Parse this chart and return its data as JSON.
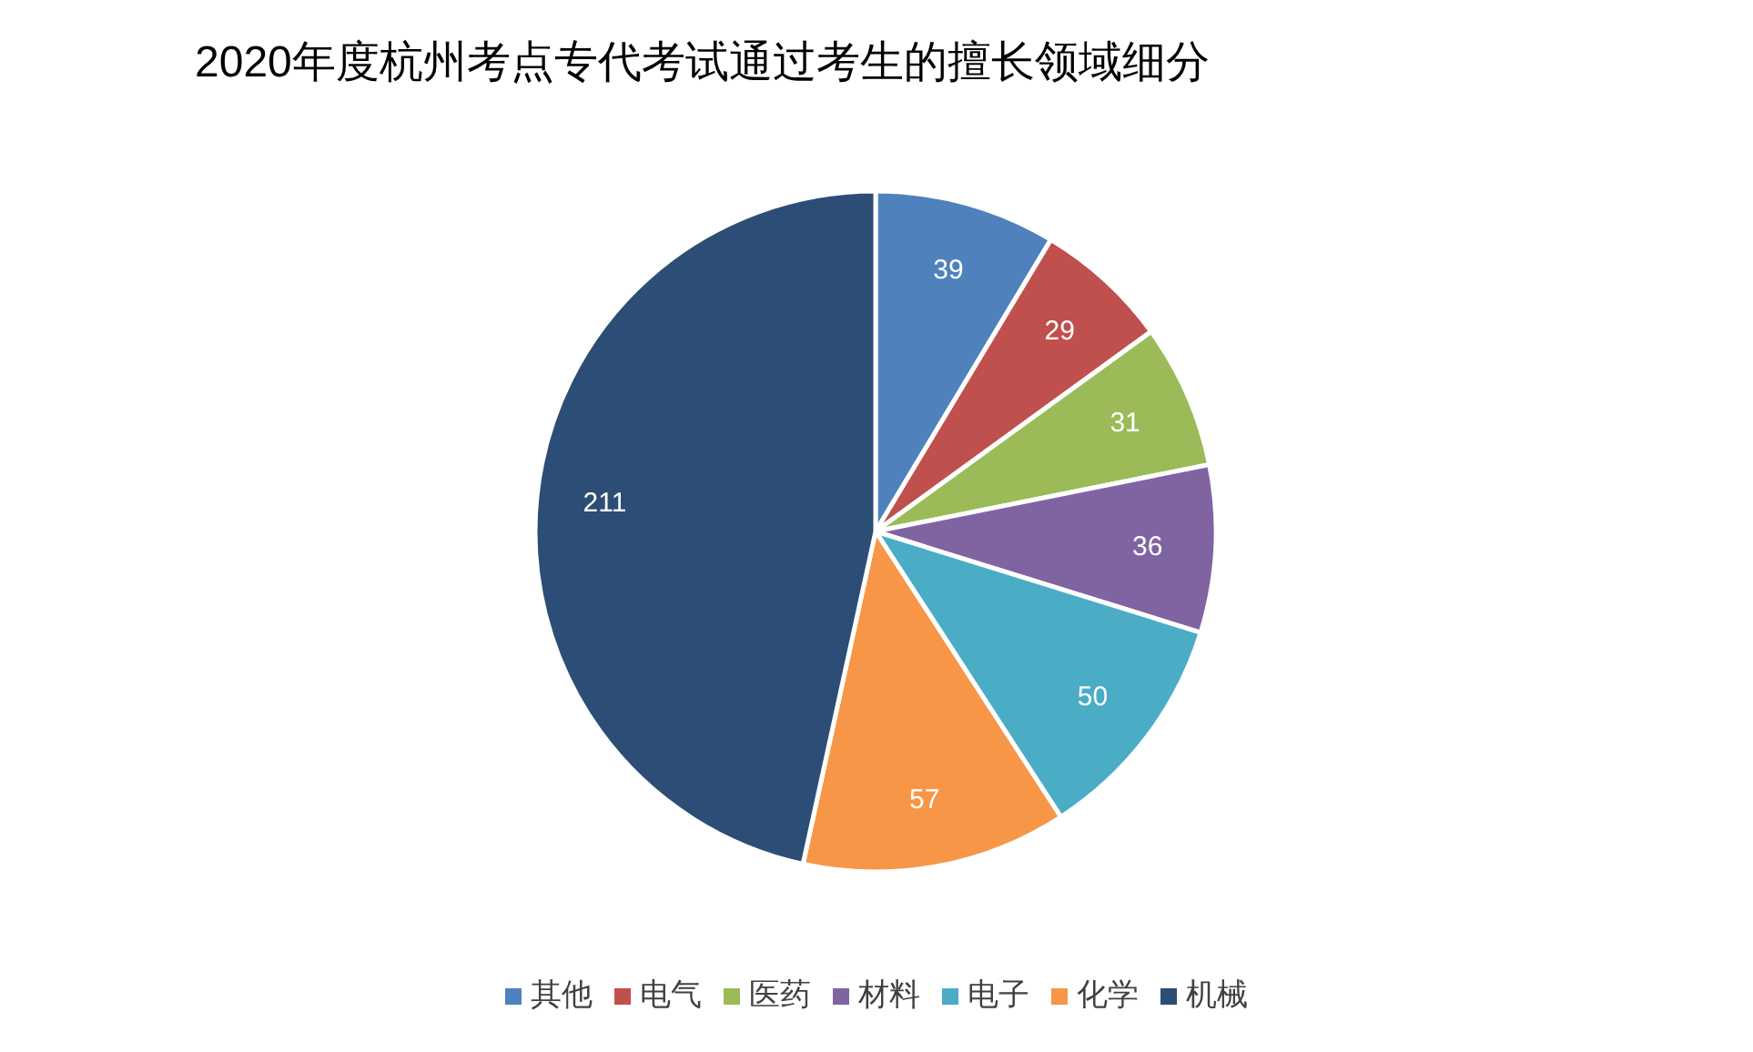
{
  "chart_data": {
    "type": "pie",
    "title": "2020年度杭州考点专代考试通过考生的擅长领域细分",
    "categories": [
      "其他",
      "电气",
      "医药",
      "材料",
      "电子",
      "化学",
      "机械"
    ],
    "values": [
      39,
      29,
      31,
      36,
      50,
      57,
      211
    ],
    "colors": [
      "#4f81bd",
      "#c0504d",
      "#9bbb59",
      "#8064a2",
      "#4bacc6",
      "#f79646",
      "#2c4d75"
    ],
    "data_labels": true,
    "legend": "bottom"
  }
}
